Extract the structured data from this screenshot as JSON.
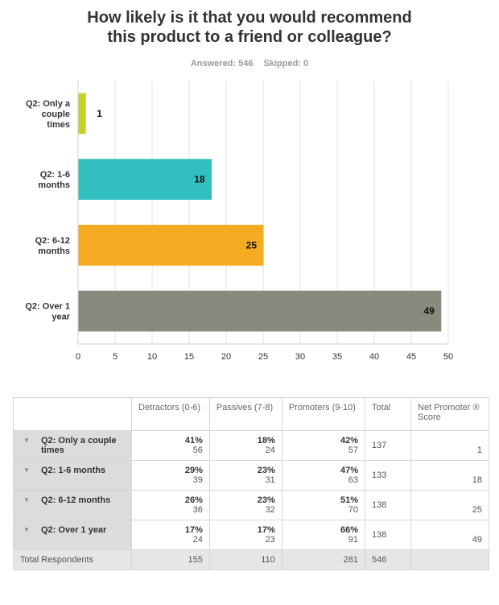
{
  "title_line1": "How likely is it that you would recommend",
  "title_line2": "this product to a friend or colleague?",
  "answered": "Answered: 546",
  "skipped": "Skipped: 0",
  "chart_data": {
    "type": "bar",
    "orientation": "horizontal",
    "categories": [
      [
        "Q2: Only a",
        "couple",
        "times"
      ],
      [
        "Q2: 1-6",
        "months"
      ],
      [
        "Q2: 6-12",
        "months"
      ],
      [
        "Q2: Over 1",
        "year"
      ]
    ],
    "values": [
      1,
      18,
      25,
      49
    ],
    "colors": [
      "#c3d32a",
      "#33bfbf",
      "#f5ab22",
      "#888a7d"
    ],
    "xlim": [
      0,
      50
    ],
    "xticks": [
      0,
      5,
      10,
      15,
      20,
      25,
      30,
      35,
      40,
      45,
      50
    ],
    "grid": true
  },
  "table": {
    "headers": [
      "Detractors (0-6)",
      "Passives (7-8)",
      "Promoters (9-10)",
      "Total",
      "Net Promoter ® Score"
    ],
    "rows": [
      {
        "label": "Q2: Only a couple times",
        "det_pct": "41%",
        "det_n": "56",
        "pas_pct": "18%",
        "pas_n": "24",
        "pro_pct": "42%",
        "pro_n": "57",
        "total": "137",
        "nps": "1"
      },
      {
        "label": "Q2: 1-6 months",
        "det_pct": "29%",
        "det_n": "39",
        "pas_pct": "23%",
        "pas_n": "31",
        "pro_pct": "47%",
        "pro_n": "63",
        "total": "133",
        "nps": "18"
      },
      {
        "label": "Q2: 6-12 months",
        "det_pct": "26%",
        "det_n": "36",
        "pas_pct": "23%",
        "pas_n": "32",
        "pro_pct": "51%",
        "pro_n": "70",
        "total": "138",
        "nps": "25"
      },
      {
        "label": "Q2: Over 1 year",
        "det_pct": "17%",
        "det_n": "24",
        "pas_pct": "17%",
        "pas_n": "23",
        "pro_pct": "66%",
        "pro_n": "91",
        "total": "138",
        "nps": "49"
      }
    ],
    "totals": {
      "label": "Total Respondents",
      "det": "155",
      "pas": "110",
      "pro": "281",
      "total": "546",
      "nps": ""
    }
  }
}
